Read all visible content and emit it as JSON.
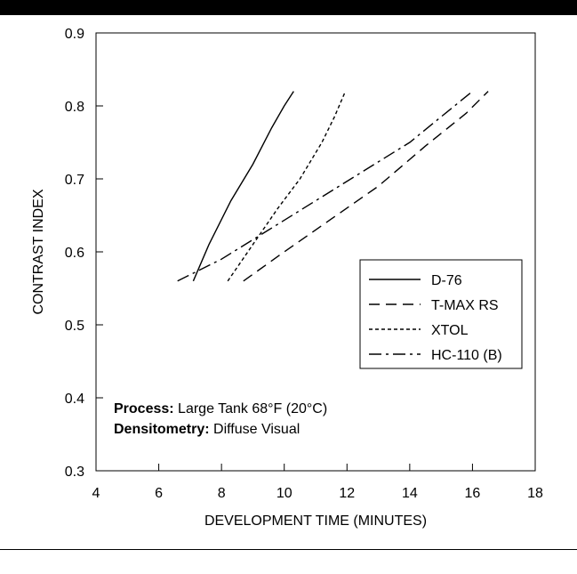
{
  "chart_data": {
    "type": "line",
    "xlabel": "DEVELOPMENT TIME (MINUTES)",
    "ylabel": "CONTRAST INDEX",
    "xlim": [
      4,
      18
    ],
    "ylim": [
      0.3,
      0.9
    ],
    "xticks": [
      "4",
      "6",
      "8",
      "10",
      "12",
      "14",
      "16",
      "18"
    ],
    "yticks": [
      "0.3",
      "0.4",
      "0.5",
      "0.6",
      "0.7",
      "0.8",
      "0.9"
    ],
    "grid": false,
    "legend_position": "right",
    "series": [
      {
        "name": "D-76",
        "dash": "solid",
        "x": [
          7.1,
          7.6,
          8.3,
          9.0,
          9.6,
          10.0,
          10.3
        ],
        "y": [
          0.56,
          0.61,
          0.67,
          0.72,
          0.77,
          0.8,
          0.82
        ]
      },
      {
        "name": "T-MAX RS",
        "dash": "dash",
        "x": [
          8.7,
          10.0,
          11.5,
          13.0,
          14.5,
          15.8,
          16.5
        ],
        "y": [
          0.56,
          0.6,
          0.645,
          0.69,
          0.745,
          0.79,
          0.82
        ]
      },
      {
        "name": "XTOL",
        "dash": "dot",
        "x": [
          8.2,
          9.0,
          9.8,
          10.5,
          11.2,
          11.6,
          11.95
        ],
        "y": [
          0.56,
          0.61,
          0.66,
          0.7,
          0.75,
          0.785,
          0.82
        ]
      },
      {
        "name": "HC-110 (B)",
        "dash": "dashdot",
        "x": [
          6.6,
          8.0,
          9.5,
          11.0,
          12.5,
          14.0,
          15.0,
          16.0
        ],
        "y": [
          0.56,
          0.59,
          0.63,
          0.67,
          0.71,
          0.75,
          0.785,
          0.82
        ]
      }
    ]
  },
  "annotation": {
    "line1_label": "Process:",
    "line1_value": " Large Tank 68°F (20°C)",
    "line2_label": "Densitometry:",
    "line2_value": " Diffuse Visual"
  }
}
